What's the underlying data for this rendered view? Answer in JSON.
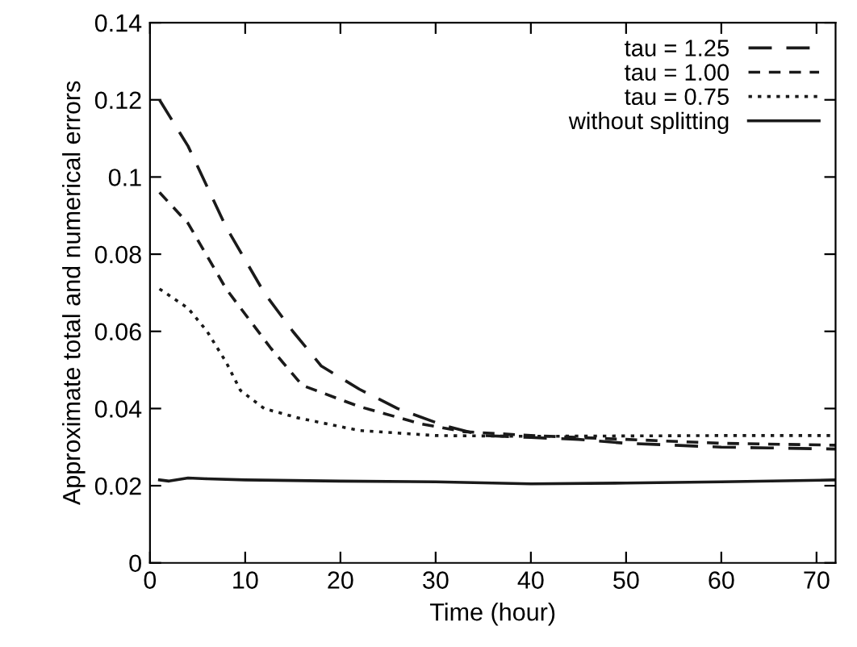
{
  "chart_data": {
    "type": "line",
    "xlabel": "Time (hour)",
    "ylabel": "Approximate total and numerical errors",
    "xlim": [
      0,
      72
    ],
    "xticks": [
      0,
      10,
      20,
      30,
      40,
      50,
      60,
      70
    ],
    "ylim": [
      0,
      0.14
    ],
    "yticks": [
      0,
      0.02,
      0.04,
      0.06,
      0.08,
      0.1,
      0.12,
      0.14
    ],
    "grid": false,
    "legend": "top right",
    "marker": "none",
    "series": [
      {
        "name": "tau = 1.25",
        "color": "#1a1a1a",
        "line_style": "dashed",
        "x": [
          1,
          4,
          8,
          12,
          15,
          18,
          22,
          26,
          31,
          35,
          40,
          45,
          50,
          55,
          60,
          65,
          72
        ],
        "values": [
          0.12,
          0.108,
          0.087,
          0.07,
          0.06,
          0.051,
          0.045,
          0.04,
          0.0355,
          0.033,
          0.0325,
          0.032,
          0.031,
          0.0305,
          0.03,
          0.0298,
          0.0295
        ]
      },
      {
        "name": "tau = 1.00",
        "color": "#1a1a1a",
        "line_style": "dashed",
        "x": [
          1,
          4,
          8,
          12.7,
          16,
          22,
          28.5,
          33,
          40,
          50,
          60,
          72
        ],
        "values": [
          0.096,
          0.088,
          0.071,
          0.0556,
          0.046,
          0.0405,
          0.036,
          0.034,
          0.033,
          0.032,
          0.031,
          0.0305
        ]
      },
      {
        "name": "tau = 0.75",
        "color": "#1a1a1a",
        "line_style": "dotted",
        "x": [
          1,
          4,
          6,
          8,
          9.5,
          12,
          15.5,
          22,
          30,
          40,
          50,
          60,
          72
        ],
        "values": [
          0.071,
          0.066,
          0.06,
          0.052,
          0.0447,
          0.04,
          0.0376,
          0.0343,
          0.033,
          0.0328,
          0.0329,
          0.033,
          0.033
        ]
      },
      {
        "name": "without splitting",
        "color": "#1a1a1a",
        "line_style": "solid",
        "x": [
          1,
          2,
          4,
          6,
          10,
          20,
          30,
          40,
          50,
          60,
          72
        ],
        "values": [
          0.0215,
          0.0212,
          0.022,
          0.0218,
          0.0215,
          0.0212,
          0.021,
          0.0205,
          0.0207,
          0.021,
          0.0215
        ]
      }
    ]
  }
}
